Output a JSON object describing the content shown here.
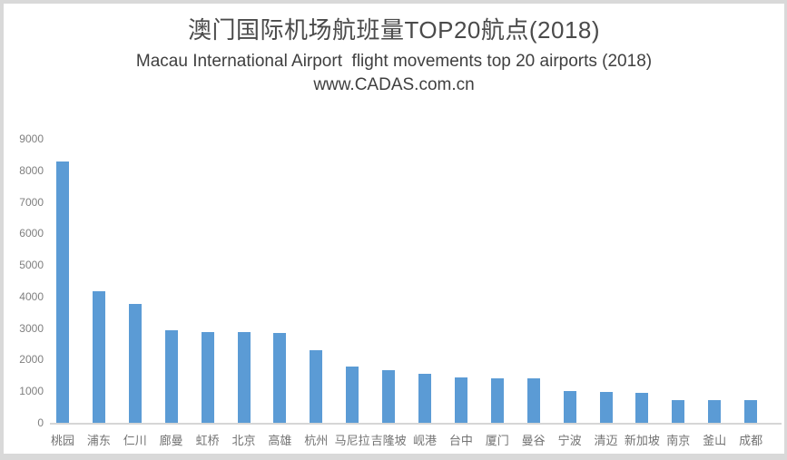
{
  "header": {
    "title_cn": "澳门国际机场航班量TOP20航点(2018)",
    "subtitle_en": "Macau International Airport  flight movements top 20 airports (2018)",
    "watermark": "www.CADAS.com.cn"
  },
  "chart_data": {
    "type": "bar",
    "title": "澳门国际机场航班量TOP20航点(2018)",
    "subtitle": "Macau International Airport  flight movements top 20 airports (2018)",
    "source_watermark": "www.CADAS.com.cn",
    "categories": [
      "桃园",
      "浦东",
      "仁川",
      "廊曼",
      "虹桥",
      "北京",
      "高雄",
      "杭州",
      "马尼拉",
      "吉隆坡",
      "岘港",
      "台中",
      "厦门",
      "曼谷",
      "宁波",
      "清迈",
      "新加坡",
      "南京",
      "釜山",
      "成都"
    ],
    "values": [
      8270,
      4160,
      3760,
      2930,
      2890,
      2870,
      2840,
      2310,
      1780,
      1680,
      1540,
      1450,
      1420,
      1400,
      1020,
      990,
      950,
      730,
      730,
      710
    ],
    "xlabel": "",
    "ylabel": "",
    "ylim": [
      0,
      9000
    ],
    "yticks": [
      0,
      1000,
      2000,
      3000,
      4000,
      5000,
      6000,
      7000,
      8000,
      9000
    ],
    "grid": false,
    "legend": "none",
    "colors": {
      "bar": "#5b9bd5",
      "axis_line": "#d6d6d6",
      "y_tick_label": "#7f7f7f",
      "x_tick_label": "#737373",
      "title": "#4a4a4a",
      "frame": "#d9d9d9",
      "background": "#ffffff"
    }
  }
}
